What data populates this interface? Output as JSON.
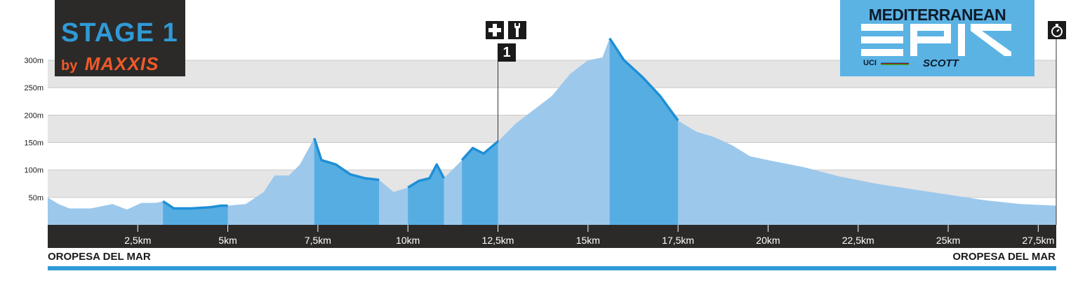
{
  "stage": {
    "title": "STAGE 1",
    "by": "by",
    "sponsor": "MAXXIS"
  },
  "event_logo": {
    "title": "MEDITERRANEAN",
    "uci": "UCI",
    "sponsor": "SCOTT",
    "mark": "EPIC"
  },
  "icons": {
    "feed_zone": "first-aid-plus-icon",
    "tech_zone": "wrench-icon",
    "finish": "stopwatch-icon"
  },
  "checkpoint": {
    "label": "1",
    "km": 12.5
  },
  "towns": {
    "start": "OROPESA DEL MAR",
    "finish": "OROPESA DEL MAR"
  },
  "colors": {
    "fill_light": "#9cc8ec",
    "fill_dark": "#56ade2",
    "profile_line": "#1e8fd6",
    "band_gray": "#e5e5e5",
    "axis_bar": "#2b2a29",
    "accent": "#2f9ad6",
    "brand_orange": "#f05a28"
  },
  "chart_data": {
    "type": "area",
    "title": "",
    "xlabel": "",
    "ylabel": "",
    "xlim": [
      0,
      28
    ],
    "ylim": [
      0,
      320
    ],
    "y_ticks": [
      50,
      100,
      150,
      200,
      250,
      300
    ],
    "y_tick_labels": [
      "50m",
      "100m",
      "150m",
      "200m",
      "250m",
      "300m"
    ],
    "x_ticks": [
      2.5,
      5,
      7.5,
      10,
      12.5,
      15,
      17.5,
      20,
      22.5,
      25,
      27.5
    ],
    "x_tick_labels": [
      "2,5km",
      "5km",
      "7,5km",
      "10km",
      "12,5km",
      "15km",
      "17,5km",
      "20km",
      "22,5km",
      "25km",
      "27,5km"
    ],
    "grid": "alternating horizontal bands",
    "highlighted_sections_km": [
      [
        3.2,
        5.0
      ],
      [
        7.4,
        9.2
      ],
      [
        10.0,
        11.0
      ],
      [
        11.5,
        12.5
      ],
      [
        15.6,
        17.5
      ]
    ],
    "series": [
      {
        "x": [
          0,
          0.3,
          0.6,
          1.2,
          1.8,
          2.2,
          2.6,
          3.0,
          3.2,
          3.5,
          4.0,
          4.5,
          4.8,
          5.0,
          5.5,
          6.0,
          6.3,
          6.7,
          7.0,
          7.4,
          7.6,
          8.0,
          8.4,
          8.8,
          9.2,
          9.6,
          10.0,
          10.3,
          10.6,
          10.8,
          11.0,
          11.5,
          11.8,
          12.1,
          12.5,
          13.0,
          13.5,
          14.0,
          14.5,
          15.0,
          15.4,
          15.6,
          16.0,
          16.5,
          17.0,
          17.5,
          18.0,
          18.5,
          19.0,
          19.5,
          20.0,
          21.0,
          22.0,
          23.0,
          24.0,
          25.0,
          26.0,
          27.0,
          28.0
        ],
        "y": [
          50,
          38,
          30,
          30,
          38,
          28,
          40,
          40,
          43,
          30,
          30,
          32,
          35,
          35,
          38,
          60,
          90,
          90,
          110,
          158,
          118,
          110,
          92,
          85,
          82,
          60,
          68,
          80,
          85,
          110,
          85,
          118,
          140,
          130,
          152,
          185,
          210,
          235,
          275,
          300,
          305,
          340,
          300,
          270,
          235,
          190,
          170,
          160,
          145,
          125,
          118,
          105,
          88,
          75,
          65,
          55,
          45,
          38,
          35
        ]
      }
    ]
  }
}
